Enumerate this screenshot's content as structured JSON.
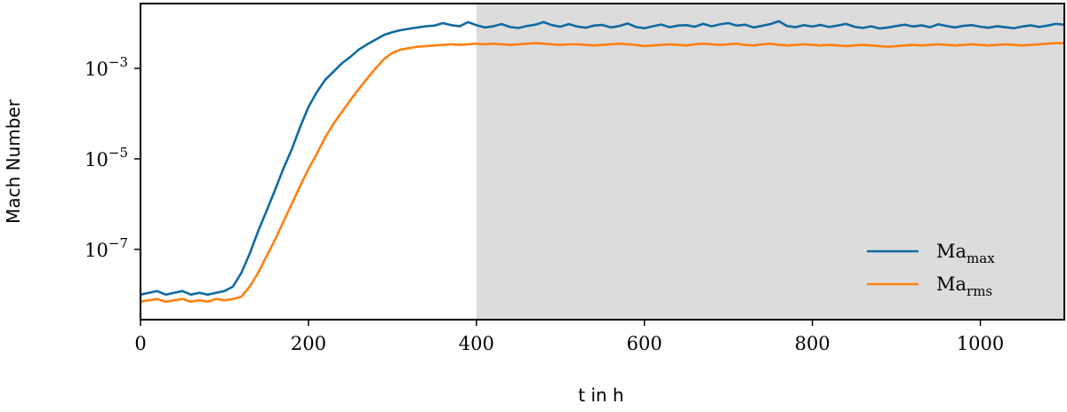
{
  "chart_data": {
    "type": "line",
    "xlabel": "t in h",
    "ylabel": "Mach Number",
    "log_scale": "y",
    "xlim": [
      0,
      1100
    ],
    "ylim": [
      2.8e-09,
      0.027
    ],
    "xticks": [
      0,
      200,
      400,
      600,
      800,
      1000
    ],
    "yticks": [
      {
        "value": 1e-07,
        "label": "10−7"
      },
      {
        "value": 1e-05,
        "label": "10−5"
      },
      {
        "value": 0.001,
        "label": "10−3"
      }
    ],
    "legend_position": "lower right",
    "shaded_region": {
      "xlim": [
        400,
        1100
      ],
      "color": "#dcdcdc"
    },
    "x": [
      0,
      10,
      20,
      30,
      40,
      50,
      60,
      70,
      80,
      90,
      100,
      110,
      120,
      130,
      140,
      150,
      160,
      170,
      180,
      190,
      200,
      210,
      220,
      230,
      240,
      250,
      260,
      270,
      280,
      290,
      300,
      310,
      320,
      330,
      340,
      350,
      360,
      370,
      380,
      390,
      400,
      410,
      420,
      430,
      440,
      450,
      460,
      470,
      480,
      490,
      500,
      510,
      520,
      530,
      540,
      550,
      560,
      570,
      580,
      590,
      600,
      610,
      620,
      630,
      640,
      650,
      660,
      670,
      680,
      690,
      700,
      710,
      720,
      730,
      740,
      750,
      760,
      770,
      780,
      790,
      800,
      810,
      820,
      830,
      840,
      850,
      860,
      870,
      880,
      890,
      900,
      910,
      920,
      930,
      940,
      950,
      960,
      970,
      980,
      990,
      1000,
      1010,
      1020,
      1030,
      1040,
      1050,
      1060,
      1070,
      1080,
      1090,
      1100
    ],
    "series": [
      {
        "name": "Mamax",
        "color": "#0f6ba3",
        "values": [
          1e-08,
          1.1e-08,
          1.2e-08,
          1e-08,
          1.1e-08,
          1.2e-08,
          1e-08,
          1.1e-08,
          1e-08,
          1.1e-08,
          1.2e-08,
          1.5e-08,
          3e-08,
          8e-08,
          2.5e-07,
          7e-07,
          2e-06,
          6e-06,
          1.6e-05,
          5e-05,
          0.00014,
          0.0003,
          0.00056,
          0.00085,
          0.0013,
          0.0018,
          0.0026,
          0.0034,
          0.0043,
          0.0055,
          0.0063,
          0.007,
          0.0075,
          0.008,
          0.0085,
          0.0088,
          0.01,
          0.009,
          0.0085,
          0.0105,
          0.009,
          0.008,
          0.0085,
          0.0095,
          0.0082,
          0.0078,
          0.0086,
          0.0092,
          0.0105,
          0.009,
          0.0083,
          0.0095,
          0.0084,
          0.0079,
          0.0088,
          0.0091,
          0.008,
          0.0086,
          0.0098,
          0.0082,
          0.0077,
          0.0085,
          0.0093,
          0.0081,
          0.0088,
          0.009,
          0.0083,
          0.0096,
          0.0085,
          0.0094,
          0.01,
          0.0088,
          0.0092,
          0.008,
          0.0087,
          0.0095,
          0.011,
          0.0086,
          0.0081,
          0.009,
          0.0084,
          0.0091,
          0.0082,
          0.0088,
          0.0096,
          0.0083,
          0.0078,
          0.0085,
          0.0076,
          0.008,
          0.0086,
          0.0092,
          0.0084,
          0.0089,
          0.0081,
          0.0094,
          0.0086,
          0.008,
          0.0087,
          0.009,
          0.0083,
          0.0079,
          0.0085,
          0.0081,
          0.0077,
          0.0084,
          0.0089,
          0.0082,
          0.0088,
          0.0096,
          0.0092
        ]
      },
      {
        "name": "Marms",
        "color": "#ff7f0e",
        "values": [
          7e-09,
          7.5e-09,
          8e-09,
          7e-09,
          7.5e-09,
          8e-09,
          7e-09,
          7.5e-09,
          7e-09,
          8e-09,
          7.5e-09,
          8e-09,
          9e-09,
          1.5e-08,
          3e-08,
          7e-08,
          1.6e-07,
          4e-07,
          1e-06,
          2.5e-06,
          6e-06,
          1.3e-05,
          3e-05,
          6e-05,
          0.00011,
          0.0002,
          0.00035,
          0.0006,
          0.001,
          0.0016,
          0.0022,
          0.0026,
          0.0028,
          0.003,
          0.0031,
          0.0032,
          0.0033,
          0.0034,
          0.0033,
          0.0034,
          0.0035,
          0.0034,
          0.0035,
          0.0034,
          0.0033,
          0.0034,
          0.0035,
          0.0036,
          0.0035,
          0.0034,
          0.0033,
          0.0034,
          0.0034,
          0.0033,
          0.0032,
          0.0033,
          0.0034,
          0.0035,
          0.0034,
          0.0033,
          0.0031,
          0.0032,
          0.0033,
          0.0034,
          0.0033,
          0.0032,
          0.0034,
          0.0035,
          0.0034,
          0.0033,
          0.0034,
          0.0035,
          0.0033,
          0.0032,
          0.0034,
          0.0035,
          0.0033,
          0.0032,
          0.0033,
          0.0034,
          0.0033,
          0.0032,
          0.0033,
          0.0032,
          0.0031,
          0.0032,
          0.0033,
          0.0032,
          0.0031,
          0.003,
          0.0031,
          0.0032,
          0.0033,
          0.0032,
          0.0033,
          0.0034,
          0.0033,
          0.0032,
          0.0033,
          0.0034,
          0.0033,
          0.0032,
          0.0033,
          0.0034,
          0.0033,
          0.0032,
          0.0033,
          0.0034,
          0.0035,
          0.0036,
          0.0036
        ]
      }
    ]
  }
}
